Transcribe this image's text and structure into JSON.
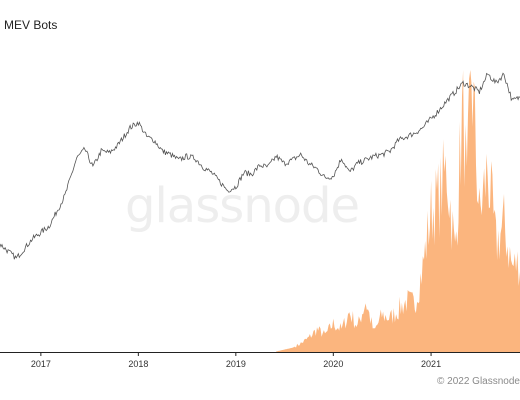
{
  "chart_data": {
    "type": "area",
    "title": "MEV Bots",
    "watermark": "glassnode",
    "copyright": "© 2022 Glassnode",
    "x_ticks": [
      "2017",
      "2018",
      "2019",
      "2020",
      "2021"
    ],
    "xlim": [
      "2016-08-01",
      "2021-11-30"
    ],
    "grid": false,
    "legend": "none",
    "colors": {
      "area": "#fbb57e",
      "line": "#555555",
      "axis": "#222222"
    },
    "series": [
      {
        "kind": "area",
        "x": [
          "2019-06-01",
          "2019-08-01",
          "2019-09-01",
          "2019-10-01",
          "2019-11-01",
          "2019-12-01",
          "2020-01-01",
          "2020-02-01",
          "2020-03-01",
          "2020-04-01",
          "2020-05-01",
          "2020-06-01",
          "2020-07-01",
          "2020-08-01",
          "2020-09-01",
          "2020-10-01",
          "2020-11-01",
          "2020-12-01",
          "2021-01-01",
          "2021-02-01",
          "2021-03-01",
          "2021-04-01",
          "2021-05-01",
          "2021-05-15",
          "2021-06-01",
          "2021-07-01",
          "2021-08-01",
          "2021-09-01",
          "2021-10-01",
          "2021-11-01",
          "2021-11-30"
        ],
        "values": [
          0.2,
          1.5,
          3,
          5,
          8,
          6,
          10,
          8,
          14,
          9,
          18,
          7,
          13,
          12,
          15,
          18,
          17,
          30,
          50,
          55,
          65,
          35,
          90,
          55,
          100,
          48,
          65,
          38,
          45,
          30,
          32
        ]
      },
      {
        "kind": "line",
        "x": [
          "2016-08-01",
          "2016-10-01",
          "2016-12-01",
          "2017-02-01",
          "2017-04-01",
          "2017-05-15",
          "2017-06-15",
          "2017-07-15",
          "2017-08-15",
          "2017-09-15",
          "2017-10-15",
          "2017-12-01",
          "2018-01-01",
          "2018-02-01",
          "2018-03-01",
          "2018-04-01",
          "2018-05-01",
          "2018-06-01",
          "2018-07-01",
          "2018-08-01",
          "2018-09-01",
          "2018-10-01",
          "2018-11-01",
          "2018-12-01",
          "2019-01-01",
          "2019-02-01",
          "2019-03-01",
          "2019-04-01",
          "2019-05-01",
          "2019-06-01",
          "2019-07-01",
          "2019-08-01",
          "2019-09-01",
          "2019-10-01",
          "2019-11-01",
          "2019-12-01",
          "2020-01-01",
          "2020-02-01",
          "2020-03-01",
          "2020-04-01",
          "2020-05-01",
          "2020-06-01",
          "2020-07-01",
          "2020-08-01",
          "2020-09-01",
          "2020-10-01",
          "2020-11-01",
          "2020-12-01",
          "2021-01-01",
          "2021-02-01",
          "2021-03-01",
          "2021-04-01",
          "2021-05-01",
          "2021-06-01",
          "2021-07-01",
          "2021-08-01",
          "2021-09-01",
          "2021-10-01",
          "2021-11-01",
          "2021-11-30"
        ],
        "values": [
          20,
          12,
          23,
          30,
          47,
          68,
          73,
          63,
          72,
          71,
          75,
          85,
          88,
          80,
          78,
          72,
          70,
          67,
          69,
          68,
          63,
          60,
          55,
          50,
          52,
          60,
          59,
          64,
          63,
          69,
          65,
          67,
          70,
          65,
          62,
          57,
          58,
          68,
          60,
          65,
          67,
          69,
          70,
          72,
          78,
          80,
          82,
          85,
          90,
          95,
          100,
          105,
          110,
          108,
          105,
          115,
          110,
          115,
          100,
          102
        ]
      }
    ]
  }
}
